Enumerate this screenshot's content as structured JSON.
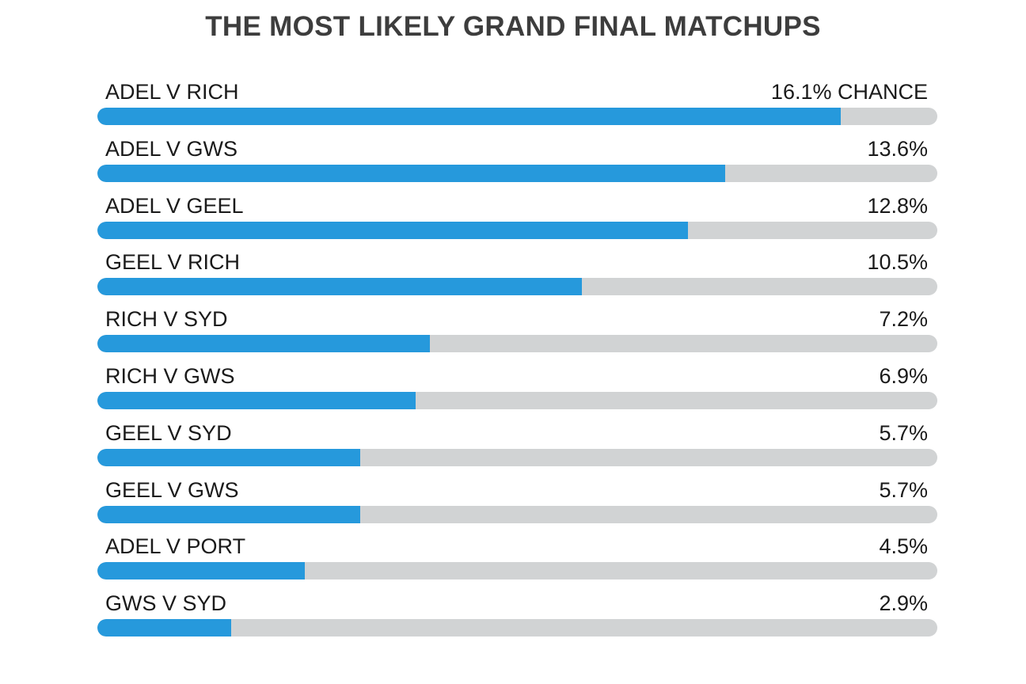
{
  "title": "THE MOST LIKELY GRAND FINAL MATCHUPS",
  "colors": {
    "bar": "#2699dc",
    "track": "#d1d3d4",
    "title": "#3d3d3d",
    "text": "#1a1a1a"
  },
  "chart_data": {
    "type": "bar",
    "orientation": "horizontal",
    "title": "THE MOST LIKELY GRAND FINAL MATCHUPS",
    "value_suffix": "% CHANCE",
    "xlim": [
      0,
      18.2
    ],
    "grid": false,
    "legend": "none",
    "categories": [
      "ADEL V RICH",
      "ADEL V GWS",
      "ADEL V GEEL",
      "GEEL V RICH",
      "RICH V SYD",
      "RICH V GWS",
      "GEEL V SYD",
      "GEEL V GWS",
      "ADEL V PORT",
      "GWS V SYD"
    ],
    "values": [
      16.1,
      13.6,
      12.8,
      10.5,
      7.2,
      6.9,
      5.7,
      5.7,
      4.5,
      2.9
    ],
    "value_labels": [
      "16.1% CHANCE",
      "13.6%",
      "12.8%",
      "10.5%",
      "7.2%",
      "6.9%",
      "5.7%",
      "5.7%",
      "4.5%",
      "2.9%"
    ]
  }
}
